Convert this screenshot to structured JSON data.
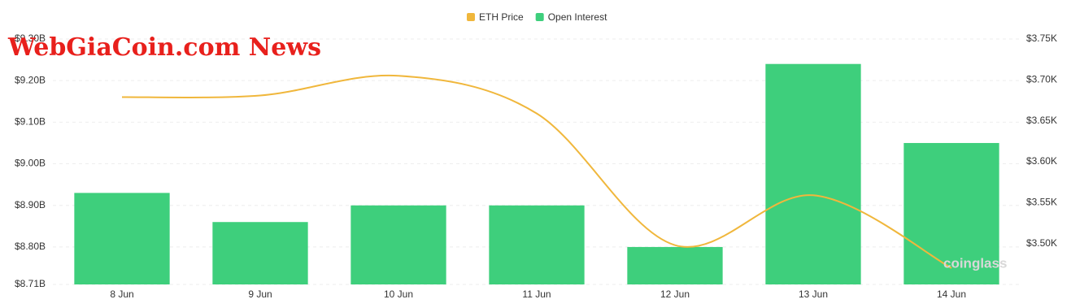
{
  "chart_data": {
    "type": "bar-line",
    "categories": [
      "8 Jun",
      "9 Jun",
      "10 Jun",
      "11 Jun",
      "12 Jun",
      "13 Jun",
      "14 Jun"
    ],
    "series": [
      {
        "name": "ETH Price",
        "color": "#f0b73c",
        "type": "line",
        "axis": "y2",
        "values": [
          3.679,
          3.681,
          3.705,
          3.659,
          3.498,
          3.559,
          3.47
        ]
      },
      {
        "name": "Open Interest",
        "color": "#3ecf7c",
        "type": "bar",
        "values": [
          8.93,
          8.86,
          8.9,
          8.9,
          8.8,
          9.24,
          9.05
        ]
      }
    ],
    "ylim": [
      8.71,
      9.3
    ],
    "yticks": [
      {
        "value": 8.71,
        "label": "$8.71B"
      },
      {
        "value": 8.8,
        "label": "$8.80B"
      },
      {
        "value": 8.9,
        "label": "$8.90B"
      },
      {
        "value": 9.0,
        "label": "$9.00B"
      },
      {
        "value": 9.1,
        "label": "$9.10B"
      },
      {
        "value": 9.2,
        "label": "$9.20B"
      },
      {
        "value": 9.3,
        "label": "$9.30B"
      }
    ],
    "y2lim": [
      3.45,
      3.75
    ],
    "y2ticks": [
      {
        "value": 3.5,
        "label": "$3.50K"
      },
      {
        "value": 3.55,
        "label": "$3.55K"
      },
      {
        "value": 3.6,
        "label": "$3.60K"
      },
      {
        "value": 3.65,
        "label": "$3.65K"
      },
      {
        "value": 3.7,
        "label": "$3.70K"
      },
      {
        "value": 3.75,
        "label": "$3.75K"
      }
    ],
    "grid": true,
    "legend": "top",
    "watermark": "WebGiaCoin.com News",
    "source": "coinglass"
  }
}
